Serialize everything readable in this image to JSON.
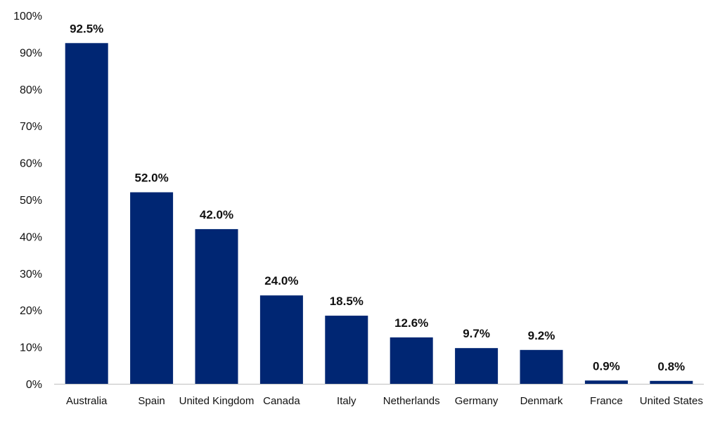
{
  "chart_data": {
    "type": "bar",
    "categories": [
      "Australia",
      "Spain",
      "United Kingdom",
      "Canada",
      "Italy",
      "Netherlands",
      "Germany",
      "Denmark",
      "France",
      "United States"
    ],
    "values": [
      92.5,
      52.0,
      42.0,
      24.0,
      18.5,
      12.6,
      9.7,
      9.2,
      0.9,
      0.8
    ],
    "data_labels": [
      "92.5%",
      "52.0%",
      "42.0%",
      "24.0%",
      "18.5%",
      "12.6%",
      "9.7%",
      "9.2%",
      "0.9%",
      "0.8%"
    ],
    "yticks": [
      0,
      10,
      20,
      30,
      40,
      50,
      60,
      70,
      80,
      90,
      100
    ],
    "ytick_labels": [
      "0%",
      "10%",
      "20%",
      "30%",
      "40%",
      "50%",
      "60%",
      "70%",
      "80%",
      "90%",
      "100%"
    ],
    "ylim": [
      0,
      100
    ],
    "grid": false,
    "legend": "none",
    "bar_color": "#002673",
    "axis_color": "#bfbfbf"
  }
}
